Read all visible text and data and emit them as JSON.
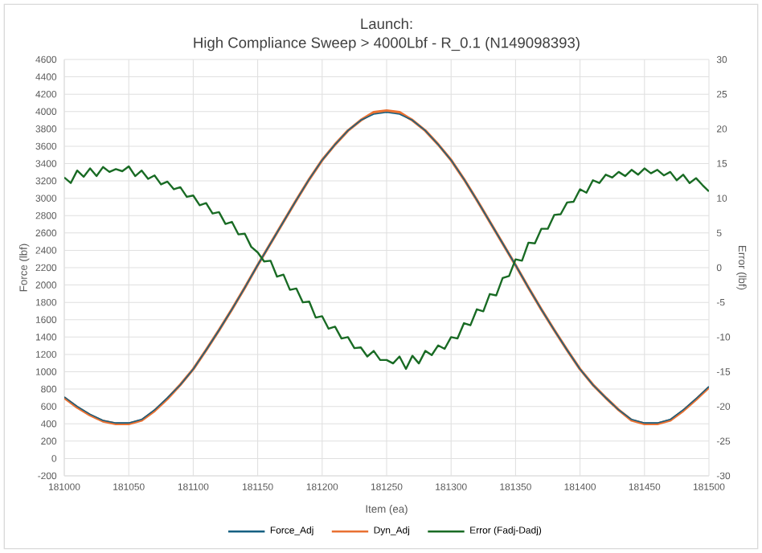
{
  "chart_data": {
    "type": "line",
    "title": "Launch:",
    "subtitle": "High Compliance Sweep > 4000Lbf - R_0.1 (N149098393)",
    "xlabel": "Item (ea)",
    "ylabel": "Force (lbf)",
    "y2label": "Error (lbf)",
    "xlim": [
      181000,
      181500
    ],
    "xticks": [
      181000,
      181050,
      181100,
      181150,
      181200,
      181250,
      181300,
      181350,
      181400,
      181450,
      181500
    ],
    "ylim": [
      -200,
      4600
    ],
    "yticks": [
      -200,
      0,
      200,
      400,
      600,
      800,
      1000,
      1200,
      1400,
      1600,
      1800,
      2000,
      2200,
      2400,
      2600,
      2800,
      3000,
      3200,
      3400,
      3600,
      3800,
      4000,
      4200,
      4400,
      4600
    ],
    "y2lim": [
      -30,
      30
    ],
    "y2ticks": [
      -30,
      -25,
      -20,
      -15,
      -10,
      -5,
      0,
      5,
      10,
      15,
      20,
      25,
      30
    ],
    "grid": true,
    "legend": "bottom",
    "marker": "none",
    "x": [
      181000,
      181010,
      181020,
      181030,
      181040,
      181050,
      181060,
      181070,
      181080,
      181090,
      181100,
      181110,
      181120,
      181130,
      181140,
      181150,
      181160,
      181170,
      181180,
      181190,
      181200,
      181210,
      181220,
      181230,
      181240,
      181250,
      181260,
      181270,
      181280,
      181290,
      181300,
      181310,
      181320,
      181330,
      181340,
      181350,
      181360,
      181370,
      181380,
      181390,
      181400,
      181410,
      181420,
      181430,
      181440,
      181450,
      181460,
      181470,
      181480,
      181490,
      181500
    ],
    "series": [
      {
        "name": "Force_Adj",
        "color": "#156082",
        "values": [
          710,
          600,
          510,
          440,
          410,
          410,
          450,
          560,
          700,
          850,
          1030,
          1250,
          1480,
          1720,
          1970,
          2230,
          2480,
          2730,
          2980,
          3220,
          3440,
          3620,
          3780,
          3900,
          3970,
          3990,
          3970,
          3900,
          3780,
          3620,
          3440,
          3220,
          2980,
          2730,
          2480,
          2230,
          1970,
          1720,
          1480,
          1250,
          1030,
          850,
          700,
          560,
          450,
          410,
          410,
          450,
          560,
          690,
          830
        ]
      },
      {
        "name": "Dyn_Adj",
        "color": "#e97132",
        "values": [
          700,
          590,
          500,
          430,
          400,
          400,
          440,
          550,
          690,
          850,
          1030,
          1250,
          1480,
          1720,
          1970,
          2230,
          2480,
          2730,
          2980,
          3220,
          3440,
          3620,
          3780,
          3900,
          3990,
          4010,
          3990,
          3900,
          3780,
          3620,
          3440,
          3220,
          2980,
          2730,
          2480,
          2230,
          1970,
          1720,
          1480,
          1250,
          1030,
          850,
          700,
          560,
          440,
          400,
          400,
          440,
          550,
          680,
          820
        ]
      },
      {
        "name": "Error (Fadj-Dadj)",
        "color": "#196b24",
        "axis": "y2",
        "x": [
          181000,
          181005,
          181010,
          181015,
          181020,
          181025,
          181030,
          181035,
          181040,
          181045,
          181050,
          181055,
          181060,
          181065,
          181070,
          181075,
          181080,
          181085,
          181090,
          181095,
          181100,
          181105,
          181110,
          181115,
          181120,
          181125,
          181130,
          181135,
          181140,
          181145,
          181150,
          181155,
          181160,
          181165,
          181170,
          181175,
          181180,
          181185,
          181190,
          181195,
          181200,
          181205,
          181210,
          181215,
          181220,
          181225,
          181230,
          181235,
          181240,
          181245,
          181250,
          181255,
          181260,
          181265,
          181270,
          181275,
          181280,
          181285,
          181290,
          181295,
          181300,
          181305,
          181310,
          181315,
          181320,
          181325,
          181330,
          181335,
          181340,
          181345,
          181350,
          181355,
          181360,
          181365,
          181370,
          181375,
          181380,
          181385,
          181390,
          181395,
          181400,
          181405,
          181410,
          181415,
          181420,
          181425,
          181430,
          181435,
          181440,
          181445,
          181450,
          181455,
          181460,
          181465,
          181470,
          181475,
          181480,
          181485,
          181490,
          181495,
          181500
        ],
        "values": [
          13.0,
          12.2,
          14.0,
          13.1,
          14.3,
          13.2,
          14.5,
          13.8,
          14.2,
          13.9,
          14.6,
          13.2,
          14.0,
          12.8,
          13.3,
          12.0,
          12.4,
          11.3,
          11.6,
          10.2,
          10.4,
          9.0,
          9.3,
          7.8,
          8.0,
          6.3,
          6.6,
          4.8,
          4.9,
          3.0,
          2.2,
          0.9,
          1.0,
          -1.3,
          -1.0,
          -3.2,
          -3.0,
          -5.0,
          -4.9,
          -7.2,
          -7.0,
          -8.8,
          -8.5,
          -10.2,
          -10.0,
          -11.6,
          -11.5,
          -12.8,
          -12.0,
          -13.3,
          -13.3,
          -13.8,
          -12.8,
          -14.6,
          -12.7,
          -13.8,
          -12.0,
          -12.6,
          -11.2,
          -11.7,
          -10.0,
          -10.2,
          -8.0,
          -8.3,
          -6.0,
          -6.3,
          -3.8,
          -4.0,
          -1.5,
          -1.2,
          1.2,
          1.0,
          3.6,
          3.5,
          5.6,
          5.6,
          7.6,
          7.7,
          9.4,
          9.5,
          11.3,
          10.8,
          12.6,
          12.2,
          13.4,
          13.0,
          13.8,
          13.2,
          14.1,
          13.4,
          14.3,
          13.6,
          14.1,
          13.3,
          13.8,
          12.6,
          13.4,
          12.2,
          12.9,
          11.9,
          11.0
        ]
      }
    ]
  }
}
